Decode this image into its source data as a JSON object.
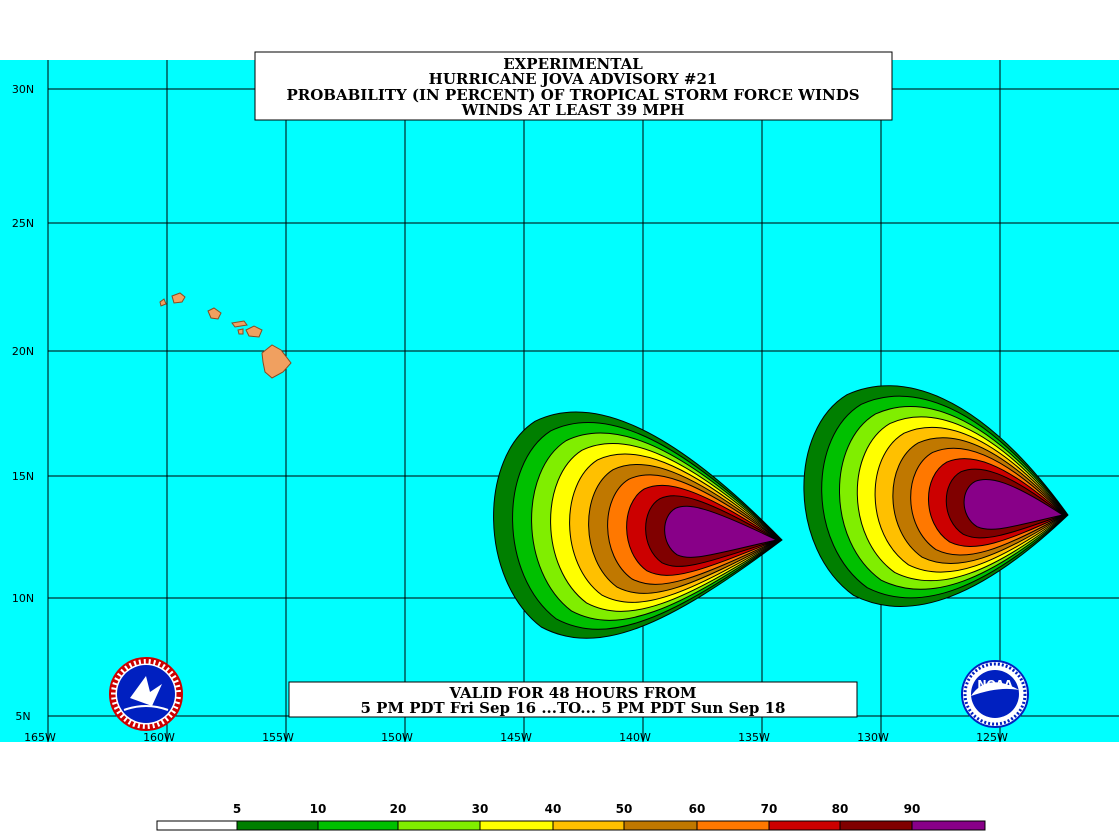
{
  "title": {
    "lines": [
      "EXPERIMENTAL",
      "HURRICANE JOVA ADVISORY #21",
      "PROBABILITY (IN PERCENT) OF TROPICAL STORM FORCE WINDS",
      "WINDS AT LEAST 39 MPH"
    ]
  },
  "valid": {
    "lines": [
      "VALID FOR 48 HOURS FROM",
      "5 PM PDT Fri Sep 16 ...TO... 5 PM PDT Sun Sep 18"
    ]
  },
  "axes": {
    "lon_labels": [
      "165W",
      "160W",
      "155W",
      "150W",
      "145W",
      "140W",
      "135W",
      "130W",
      "125W"
    ],
    "lat_labels": [
      "30N",
      "25N",
      "20N",
      "15N",
      "10N",
      "5N"
    ]
  },
  "legend": {
    "labels": [
      "5",
      "10",
      "20",
      "30",
      "40",
      "50",
      "60",
      "70",
      "80",
      "90"
    ],
    "colors": [
      "#ffffff",
      "#007f00",
      "#00c000",
      "#80ee00",
      "#ffff00",
      "#ffc000",
      "#c07800",
      "#ff7800",
      "#cc0000",
      "#800000",
      "#880088"
    ]
  },
  "colors": {
    "ocean": "#00ffff",
    "land": "#f0a060"
  },
  "logos": {
    "left": "nws-logo",
    "right": "noaa-logo"
  }
}
